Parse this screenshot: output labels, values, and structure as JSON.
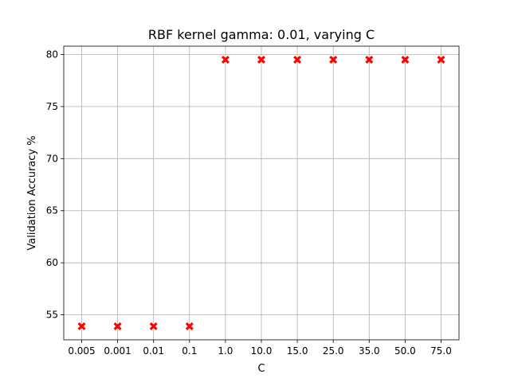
{
  "chart_data": {
    "type": "scatter",
    "title": "RBF kernel gamma: 0.01, varying C",
    "xlabel": "C",
    "ylabel": "Validation Accuracy %",
    "categories": [
      "0.005",
      "0.001",
      "0.01",
      "0.1",
      "1.0",
      "10.0",
      "15.0",
      "25.0",
      "35.0",
      "50.0",
      "75.0"
    ],
    "series": [
      {
        "values": [
          53.9,
          53.9,
          53.9,
          53.9,
          79.5,
          79.5,
          79.5,
          79.5,
          79.5,
          79.5,
          79.5
        ],
        "color": "#ff0000",
        "marker": "X"
      }
    ],
    "ylim": [
      52.6,
      80.8
    ],
    "yticks": [
      55,
      60,
      65,
      70,
      75,
      80
    ],
    "grid": true
  }
}
